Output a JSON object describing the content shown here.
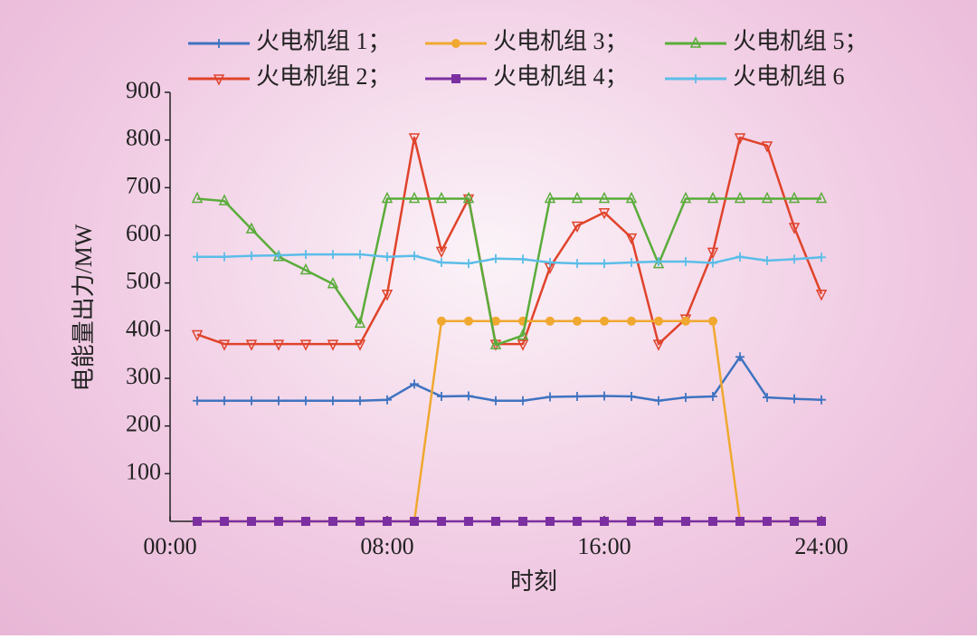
{
  "chart_data": {
    "type": "line",
    "xlabel": "时刻",
    "ylabel": "电能量出力/MW",
    "x": [
      1,
      2,
      3,
      4,
      5,
      6,
      7,
      8,
      9,
      10,
      11,
      12,
      13,
      14,
      15,
      16,
      17,
      18,
      19,
      20,
      21,
      22,
      23,
      24
    ],
    "xlim": [
      0,
      24
    ],
    "xticks": [
      {
        "value": 0,
        "label": "00:00"
      },
      {
        "value": 8,
        "label": "08:00"
      },
      {
        "value": 16,
        "label": "16:00"
      },
      {
        "value": 24,
        "label": "24:00"
      }
    ],
    "ylim": [
      0,
      900
    ],
    "yticks": [
      100,
      200,
      300,
      400,
      500,
      600,
      700,
      800,
      900
    ],
    "grid": false,
    "series": [
      {
        "name": "火电机组 1；",
        "color": "#3f73c0",
        "marker": "plus",
        "values": [
          253,
          253,
          253,
          253,
          253,
          253,
          253,
          255,
          288,
          262,
          263,
          253,
          253,
          261,
          262,
          263,
          262,
          253,
          260,
          262,
          345,
          260,
          257,
          255
        ]
      },
      {
        "name": "火电机组 2；",
        "color": "#e0432b",
        "marker": "triangle-down",
        "values": [
          392,
          372,
          372,
          372,
          372,
          372,
          372,
          477,
          805,
          567,
          677,
          372,
          372,
          533,
          620,
          648,
          595,
          372,
          425,
          565,
          805,
          788,
          617,
          477
        ]
      },
      {
        "name": "火电机组 3；",
        "color": "#f0a830",
        "marker": "circle",
        "values": [
          0,
          0,
          0,
          0,
          0,
          0,
          0,
          0,
          0,
          420,
          420,
          420,
          420,
          420,
          420,
          420,
          420,
          420,
          420,
          420,
          0,
          0,
          0,
          0
        ]
      },
      {
        "name": "火电机组 4；",
        "color": "#7b2fa0",
        "marker": "square",
        "values": [
          0,
          0,
          0,
          0,
          0,
          0,
          0,
          0,
          0,
          0,
          0,
          0,
          0,
          0,
          0,
          0,
          0,
          0,
          0,
          0,
          0,
          0,
          0,
          0
        ]
      },
      {
        "name": "火电机组 5；",
        "color": "#5aac3a",
        "marker": "triangle-up",
        "values": [
          677,
          672,
          613,
          555,
          527,
          498,
          415,
          677,
          677,
          677,
          677,
          370,
          390,
          677,
          677,
          677,
          677,
          540,
          677,
          677,
          677,
          677,
          677,
          677
        ]
      },
      {
        "name": "火电机组 6",
        "color": "#5bbde8",
        "marker": "plus",
        "values": [
          555,
          555,
          557,
          558,
          560,
          560,
          560,
          555,
          557,
          543,
          541,
          551,
          550,
          543,
          541,
          541,
          543,
          545,
          545,
          542,
          555,
          547,
          550,
          554
        ]
      }
    ]
  }
}
